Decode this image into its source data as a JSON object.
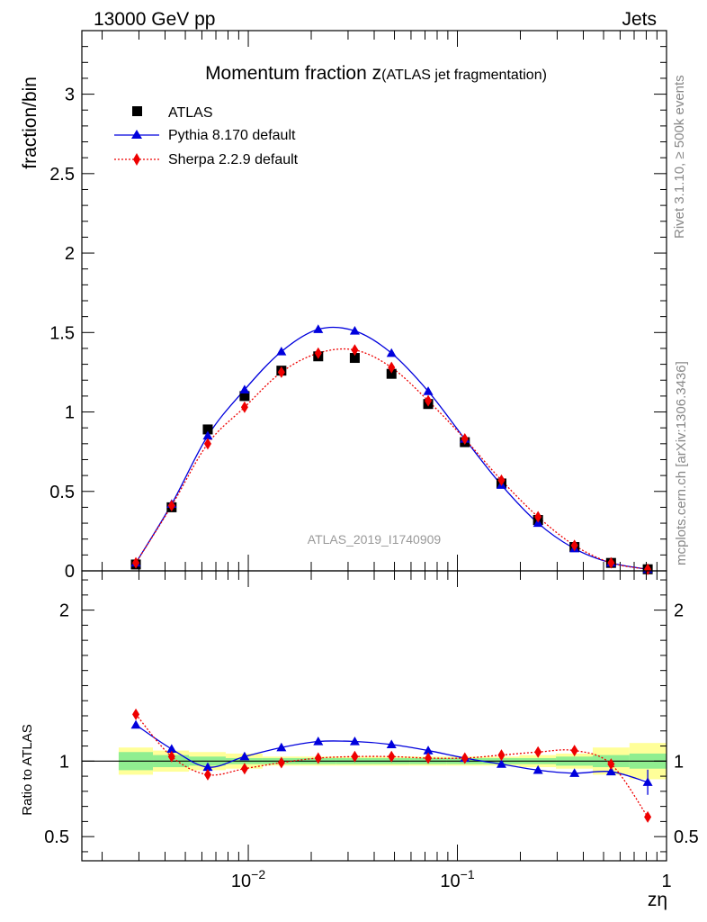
{
  "header": {
    "left": "13000 GeV pp",
    "right": "Jets"
  },
  "side_labels": {
    "rivet": "Rivet 3.1.10, ≥ 500k events",
    "mcplots": "mcplots.cern.ch [arXiv:1306.3436]"
  },
  "title": {
    "main": "Momentum fraction z",
    "sub": "(ATLAS jet fragmentation)"
  },
  "analysis_tag": "ATLAS_2019_I1740909",
  "colors": {
    "pythia": "#0000dd",
    "sherpa": "#ee0000",
    "data": "#000000",
    "band_inner": "#90ee90",
    "band_outer": "#ffff99"
  },
  "chart_data": [
    {
      "type": "scatter",
      "panel": "main",
      "ylabel": "fraction/bin",
      "xscale": "log",
      "xlim": [
        0.0016,
        1.0
      ],
      "ylim": [
        0,
        3.4
      ],
      "yticks": [
        {
          "v": 0,
          "label": "0"
        },
        {
          "v": 0.5,
          "label": "0.5"
        },
        {
          "v": 1,
          "label": "1"
        },
        {
          "v": 1.5,
          "label": "1.5"
        },
        {
          "v": 2,
          "label": "2"
        },
        {
          "v": 2.5,
          "label": "2.5"
        },
        {
          "v": 3,
          "label": "3"
        }
      ],
      "x": [
        0.0029,
        0.0043,
        0.0064,
        0.0096,
        0.0144,
        0.0216,
        0.0323,
        0.0484,
        0.0725,
        0.1085,
        0.1624,
        0.243,
        0.363,
        0.543,
        0.813
      ],
      "series": [
        {
          "name": "ATLAS",
          "values": [
            0.04,
            0.4,
            0.89,
            1.1,
            1.26,
            1.35,
            1.34,
            1.24,
            1.05,
            0.81,
            0.55,
            0.32,
            0.15,
            0.05,
            0.01
          ]
        },
        {
          "name": "Pythia 8.170 default",
          "values": [
            0.05,
            0.42,
            0.85,
            1.14,
            1.38,
            1.52,
            1.51,
            1.37,
            1.13,
            0.83,
            0.54,
            0.3,
            0.14,
            0.05,
            0.01
          ]
        },
        {
          "name": "Sherpa 2.2.9 default",
          "values": [
            0.05,
            0.41,
            0.8,
            1.03,
            1.25,
            1.37,
            1.39,
            1.28,
            1.07,
            0.83,
            0.57,
            0.34,
            0.16,
            0.05,
            0.01
          ]
        }
      ]
    },
    {
      "type": "line",
      "panel": "ratio",
      "ylabel": "Ratio to ATLAS",
      "xlabel": "zη",
      "xscale": "log",
      "xlim": [
        0.0016,
        1.0
      ],
      "ylim": [
        0.34,
        2.26
      ],
      "yticks": [
        {
          "v": 0.5,
          "label": "0.5"
        },
        {
          "v": 1,
          "label": "1"
        },
        {
          "v": 2,
          "label": "2"
        }
      ],
      "xticks": [
        {
          "v": 0.01,
          "label": "10",
          "exp": "−2"
        },
        {
          "v": 0.1,
          "label": "10",
          "exp": "−1"
        },
        {
          "v": 1,
          "label": "1",
          "exp": ""
        }
      ],
      "x": [
        0.0029,
        0.0043,
        0.0064,
        0.0096,
        0.0144,
        0.0216,
        0.0323,
        0.0484,
        0.0725,
        0.1085,
        0.1624,
        0.243,
        0.363,
        0.543,
        0.813
      ],
      "series": [
        {
          "name": "Pythia 8.170 default",
          "values": [
            1.24,
            1.08,
            0.96,
            1.03,
            1.09,
            1.13,
            1.13,
            1.11,
            1.07,
            1.02,
            0.98,
            0.94,
            0.92,
            0.93,
            0.86
          ]
        },
        {
          "name": "Sherpa 2.2.9 default",
          "values": [
            1.31,
            1.03,
            0.91,
            0.95,
            0.99,
            1.02,
            1.03,
            1.03,
            1.02,
            1.02,
            1.04,
            1.06,
            1.07,
            0.98,
            0.63
          ]
        }
      ],
      "bands": {
        "edges": [
          0.0024,
          0.0035,
          0.0052,
          0.0078,
          0.0117,
          0.0176,
          0.0263,
          0.0394,
          0.059,
          0.0885,
          0.132,
          0.198,
          0.296,
          0.444,
          0.665,
          1.0
        ],
        "inner": [
          0.06,
          0.04,
          0.03,
          0.02,
          0.02,
          0.02,
          0.02,
          0.02,
          0.02,
          0.02,
          0.02,
          0.02,
          0.03,
          0.04,
          0.05
        ],
        "outer": [
          0.09,
          0.07,
          0.06,
          0.05,
          0.03,
          0.03,
          0.03,
          0.03,
          0.03,
          0.03,
          0.03,
          0.04,
          0.05,
          0.09,
          0.12
        ]
      }
    }
  ]
}
